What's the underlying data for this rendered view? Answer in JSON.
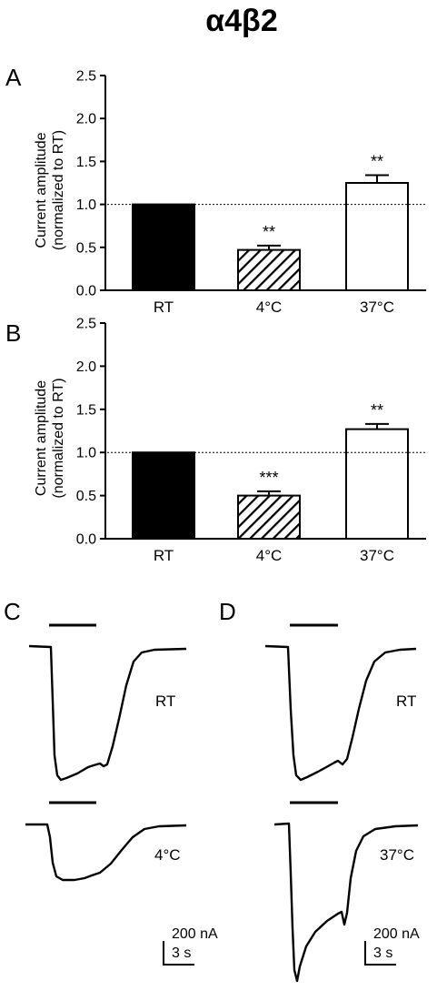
{
  "figure": {
    "title": "α4β2",
    "panel_labels": [
      "A",
      "B",
      "C",
      "D"
    ]
  },
  "colors": {
    "ink": "#000000",
    "open_bar": "#ffffff",
    "reference_line": "#000000"
  },
  "chart_data": [
    {
      "panel": "A",
      "type": "bar",
      "ylabel_line1": "Current amplitude",
      "ylabel_line2": "(normalized to RT)",
      "xlabel": "",
      "categories": [
        "RT",
        "4°C",
        "37°C"
      ],
      "values": [
        1.0,
        0.47,
        1.25
      ],
      "errors": [
        0.0,
        0.05,
        0.09
      ],
      "significance": [
        "",
        "**",
        "**"
      ],
      "bar_fills": [
        "solid-black",
        "diagonal-hatch",
        "white"
      ],
      "ylim": [
        0,
        2.5
      ],
      "yticks": [
        "0.0",
        "0.5",
        "1.0",
        "1.5",
        "2.0",
        "2.5"
      ],
      "reference_line": 1.0,
      "grid": false
    },
    {
      "panel": "B",
      "type": "bar",
      "ylabel_line1": "Current amplitude",
      "ylabel_line2": "(normalized to RT)",
      "xlabel": "",
      "categories": [
        "RT",
        "4°C",
        "37°C"
      ],
      "values": [
        1.0,
        0.5,
        1.27
      ],
      "errors": [
        0.0,
        0.05,
        0.06
      ],
      "significance": [
        "",
        "***",
        "**"
      ],
      "bar_fills": [
        "solid-black",
        "diagonal-hatch",
        "white"
      ],
      "ylim": [
        0,
        2.5
      ],
      "yticks": [
        "0.0",
        "0.5",
        "1.0",
        "1.5",
        "2.0",
        "2.5"
      ],
      "reference_line": 1.0,
      "grid": false
    }
  ],
  "traces": {
    "C": {
      "top_label": "RT",
      "bottom_label": "4°C",
      "scale_current": "200 nA",
      "scale_time": "3 s"
    },
    "D": {
      "top_label": "RT",
      "bottom_label": "37°C",
      "scale_current": "200 nA",
      "scale_time": "3 s"
    }
  }
}
